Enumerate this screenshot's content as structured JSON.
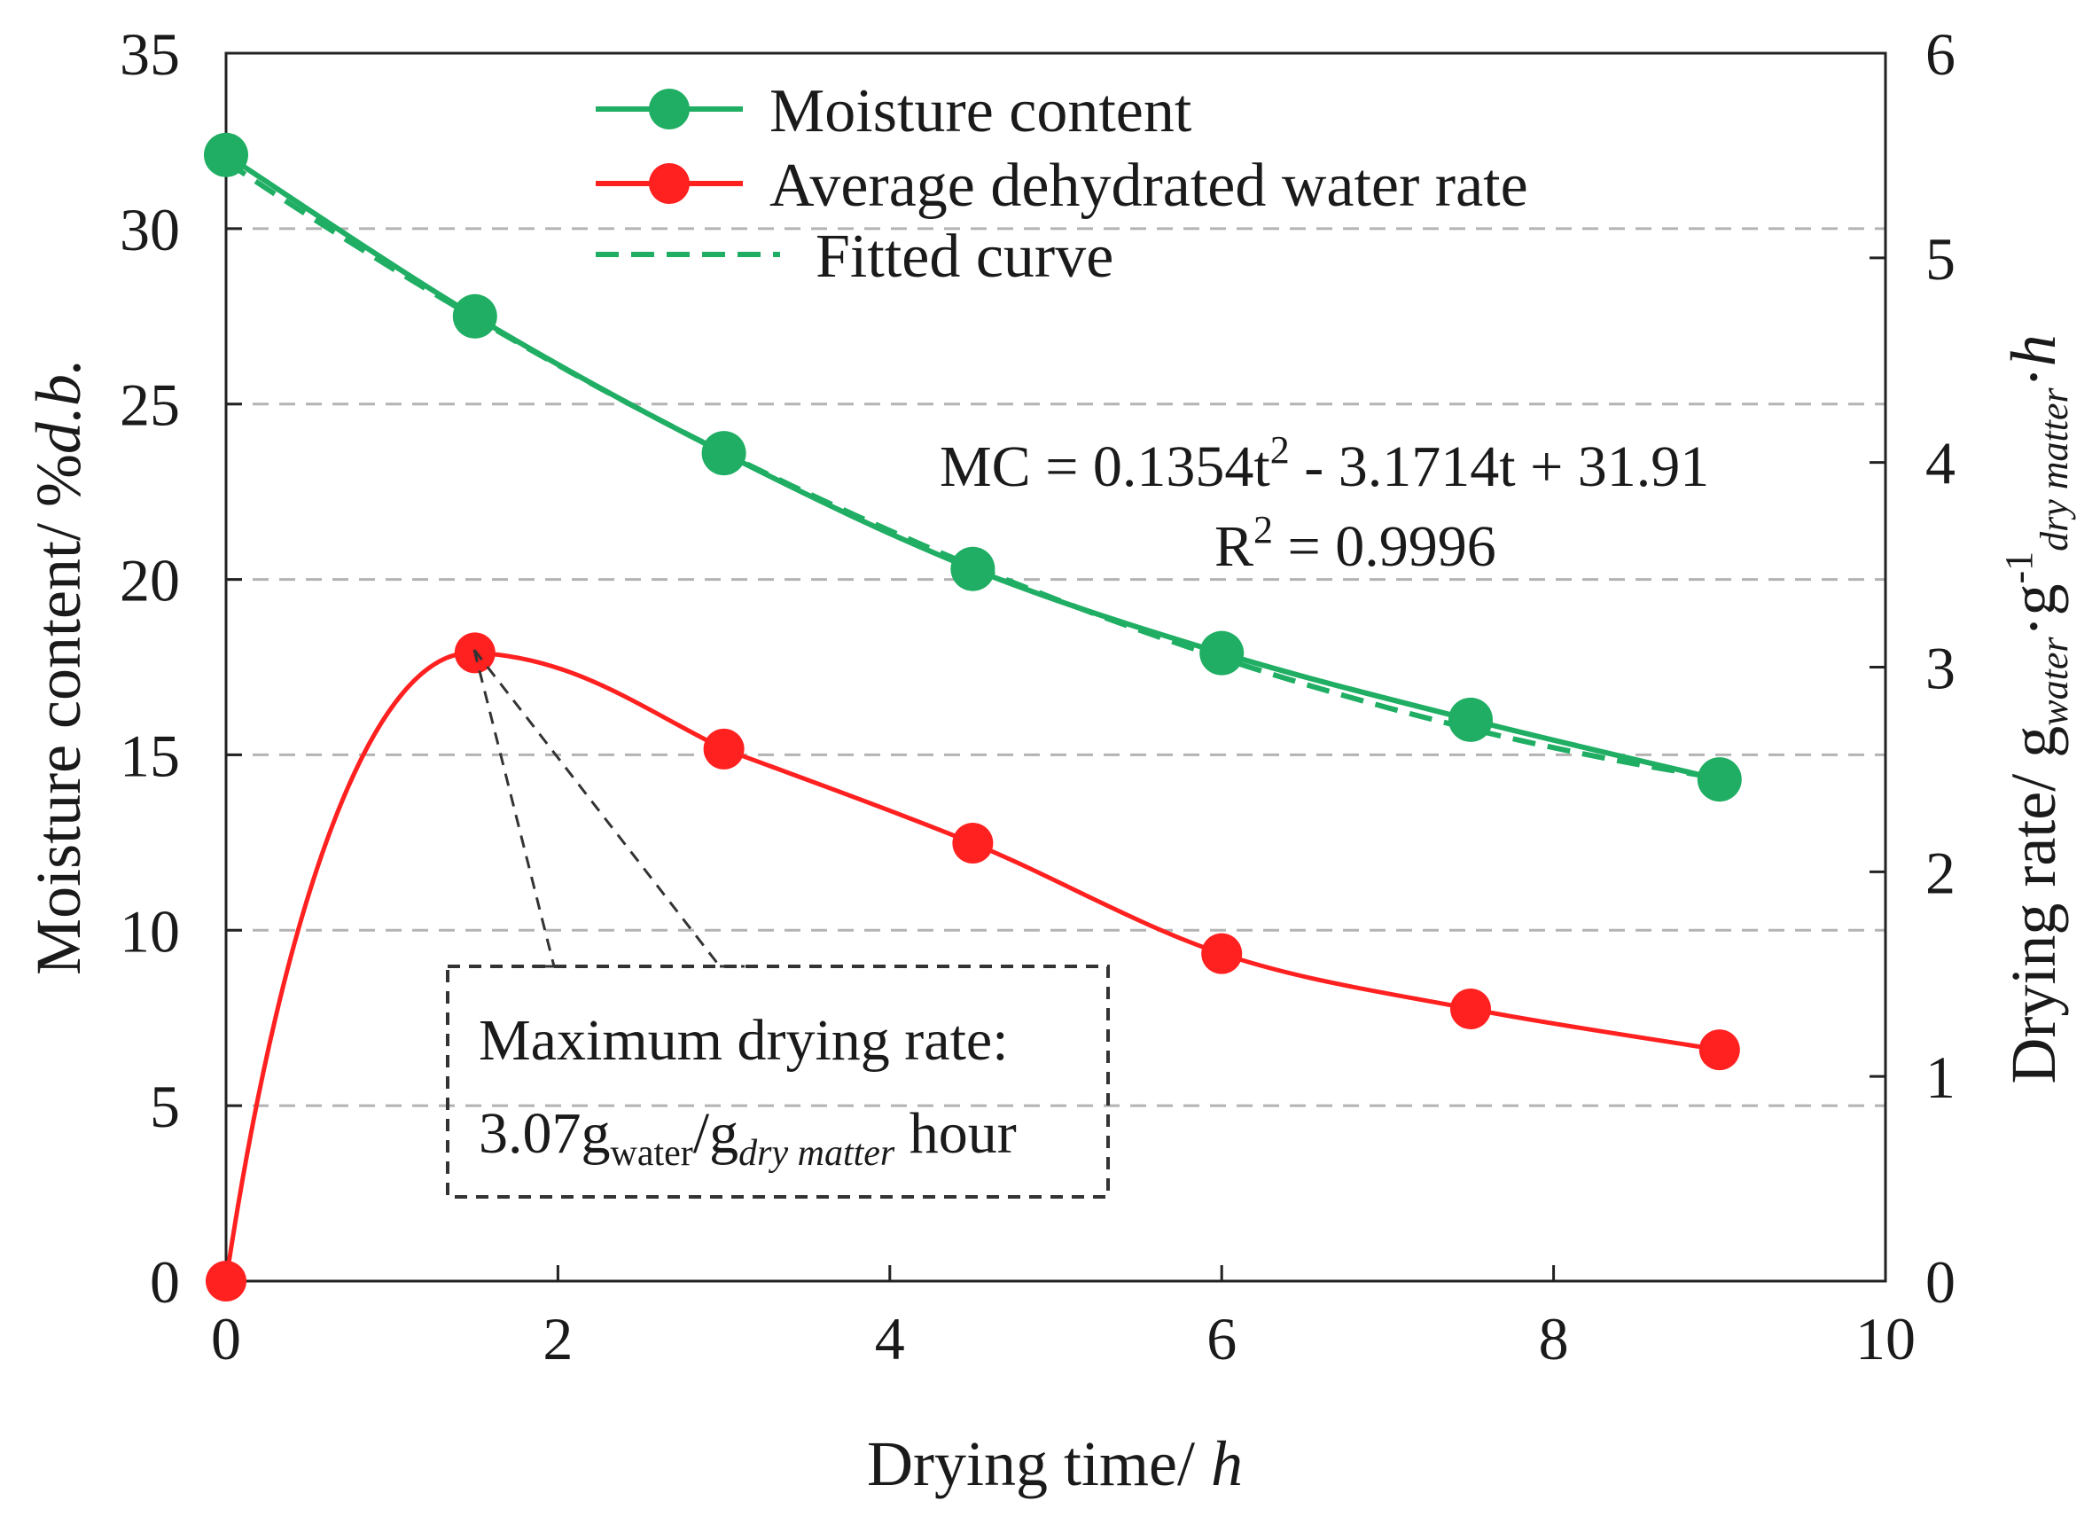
{
  "chart_data": {
    "type": "line",
    "xlabel": "Drying time/ h",
    "ylabel_left": "Moisture content/ %d.b.",
    "ylabel_right": "Drying rate/ g_water·g⁻¹_dry matter·h",
    "xlim": [
      0,
      10
    ],
    "ylim_left": [
      0,
      35
    ],
    "ylim_right": [
      0,
      6
    ],
    "x_ticks": [
      0,
      2,
      4,
      6,
      8,
      10
    ],
    "y_left_ticks": [
      0,
      5,
      10,
      15,
      20,
      25,
      30,
      35
    ],
    "y_right_ticks": [
      0,
      1,
      2,
      3,
      4,
      5,
      6
    ],
    "grid": "horizontal dashed",
    "legend": "top-center",
    "series": [
      {
        "name": "Moisture content",
        "axis": "left",
        "color": "#1fae63",
        "marker": "circle",
        "x": [
          0,
          1.5,
          3,
          4.5,
          6,
          7.5,
          9
        ],
        "y": [
          32.1,
          27.5,
          23.6,
          20.3,
          17.9,
          16.0,
          14.3
        ]
      },
      {
        "name": "Average dehydrated water rate",
        "axis": "right",
        "color": "#ff2020",
        "marker": "circle",
        "smooth": true,
        "x": [
          0,
          1.5,
          3,
          4.5,
          6,
          7.5,
          9
        ],
        "y": [
          0,
          3.07,
          2.6,
          2.14,
          1.6,
          1.33,
          1.13
        ]
      },
      {
        "name": "Fitted curve",
        "axis": "left",
        "color": "#1fae63",
        "dash": true,
        "equation": {
          "a": 0.1354,
          "b": -3.1714,
          "c": 31.91
        },
        "x_range": [
          0,
          9
        ]
      }
    ],
    "annotations": {
      "equation_text": "MC = 0.1354t² - 3.1714t + 31.91",
      "r2_text": "R² = 0.9996",
      "max_rate_line1": "Maximum drying rate:",
      "max_rate_line2": "3.07g_water/g_dry matter hour"
    }
  }
}
